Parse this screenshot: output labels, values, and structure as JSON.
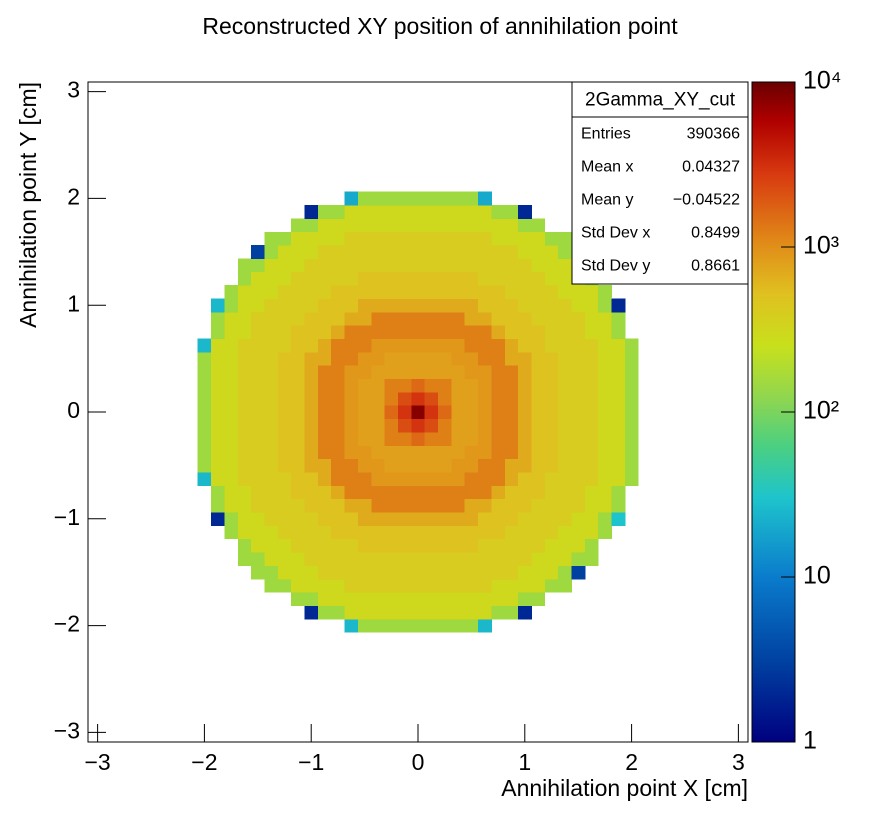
{
  "chart_data": {
    "type": "heatmap",
    "title": "Reconstructed XY position of annihilation point",
    "xlabel": "Annihilation point X [cm]",
    "ylabel": "Annihilation point Y [cm]",
    "xlim": [
      -3.09,
      3.09
    ],
    "ylim": [
      -3.09,
      3.09
    ],
    "xticks": [
      {
        "value": -3,
        "label": "−3"
      },
      {
        "value": -2,
        "label": "−2"
      },
      {
        "value": -1,
        "label": "−1"
      },
      0,
      1,
      2,
      3
    ],
    "yticks": [
      {
        "value": -3,
        "label": "−3"
      },
      {
        "value": -2,
        "label": "−2"
      },
      {
        "value": -1,
        "label": "−1"
      },
      0,
      1,
      2,
      3
    ],
    "zlim": [
      1,
      10000
    ],
    "zlog": true,
    "zticks": [
      1,
      10,
      {
        "value": 100,
        "label": "10²"
      },
      {
        "value": 1000,
        "label": "10³"
      },
      {
        "value": 10000,
        "label": "10⁴"
      }
    ],
    "colorscale": [
      [
        0,
        "#000080"
      ],
      [
        0.12,
        "#0040a0"
      ],
      [
        0.25,
        "#0a7ccc"
      ],
      [
        0.37,
        "#1ec4cc"
      ],
      [
        0.45,
        "#4cd080"
      ],
      [
        0.52,
        "#8ed650"
      ],
      [
        0.6,
        "#c8e01c"
      ],
      [
        0.68,
        "#e0c020"
      ],
      [
        0.76,
        "#e08818"
      ],
      [
        0.86,
        "#d83a10"
      ],
      [
        0.94,
        "#b00000"
      ],
      [
        1,
        "#6a0000"
      ]
    ],
    "xbins": [
      -2.0625,
      -1.9375,
      -1.8125,
      -1.6875,
      -1.5625,
      -1.4375,
      -1.3125,
      -1.1875,
      -1.0625,
      -0.9375,
      -0.8125,
      -0.6875,
      -0.5625,
      -0.4375,
      -0.3125,
      -0.1875,
      -0.0625,
      0.0625,
      0.1875,
      0.3125,
      0.4375,
      0.5625,
      0.6875,
      0.8125,
      0.9375,
      1.0625,
      1.1875,
      1.3125,
      1.4375,
      1.5625,
      1.6875,
      1.8125,
      1.9375,
      2.0625
    ],
    "ybins": [
      -2.0625,
      -1.9375,
      -1.8125,
      -1.6875,
      -1.5625,
      -1.4375,
      -1.3125,
      -1.1875,
      -1.0625,
      -0.9375,
      -0.8125,
      -0.6875,
      -0.5625,
      -0.4375,
      -0.3125,
      -0.1875,
      -0.0625,
      0.0625,
      0.1875,
      0.3125,
      0.4375,
      0.5625,
      0.6875,
      0.8125,
      0.9375,
      1.0625,
      1.1875,
      1.3125,
      1.4375,
      1.5625,
      1.6875,
      1.8125,
      1.9375,
      2.0625
    ],
    "z": [
      [
        null,
        null,
        null,
        null,
        null,
        null,
        null,
        null,
        null,
        null,
        null,
        25,
        150,
        150,
        150,
        150,
        150,
        150,
        150,
        150,
        150,
        25,
        null,
        null,
        null,
        null,
        null,
        null,
        null,
        null,
        null,
        null,
        null
      ],
      [
        null,
        null,
        null,
        null,
        null,
        null,
        null,
        null,
        2,
        150,
        150,
        300,
        300,
        300,
        300,
        300,
        300,
        300,
        300,
        300,
        300,
        300,
        150,
        150,
        2,
        null,
        null,
        null,
        null,
        null,
        null,
        null,
        null
      ],
      [
        null,
        null,
        null,
        null,
        null,
        null,
        null,
        150,
        150,
        300,
        300,
        300,
        300,
        300,
        300,
        300,
        300,
        300,
        300,
        300,
        300,
        300,
        300,
        300,
        150,
        150,
        null,
        null,
        null,
        null,
        null,
        null,
        null
      ],
      [
        null,
        null,
        null,
        null,
        null,
        150,
        150,
        300,
        300,
        300,
        300,
        400,
        400,
        400,
        400,
        400,
        400,
        400,
        400,
        400,
        400,
        400,
        300,
        300,
        300,
        300,
        150,
        150,
        null,
        null,
        null,
        null,
        null
      ],
      [
        null,
        null,
        null,
        null,
        150,
        150,
        300,
        300,
        300,
        400,
        400,
        400,
        400,
        400,
        400,
        400,
        400,
        400,
        400,
        400,
        400,
        400,
        400,
        400,
        300,
        300,
        300,
        150,
        3,
        null,
        null,
        null,
        null
      ],
      [
        null,
        null,
        null,
        150,
        150,
        300,
        300,
        300,
        400,
        400,
        400,
        400,
        400,
        400,
        400,
        400,
        400,
        400,
        400,
        400,
        400,
        400,
        400,
        400,
        400,
        300,
        300,
        300,
        150,
        150,
        null,
        null,
        null
      ],
      [
        null,
        null,
        null,
        150,
        300,
        300,
        300,
        400,
        400,
        400,
        400,
        400,
        500,
        500,
        500,
        500,
        500,
        500,
        500,
        500,
        500,
        400,
        400,
        400,
        400,
        400,
        300,
        300,
        300,
        150,
        null,
        null,
        null
      ],
      [
        null,
        null,
        150,
        300,
        300,
        300,
        400,
        400,
        400,
        400,
        500,
        500,
        500,
        500,
        500,
        500,
        500,
        500,
        500,
        500,
        500,
        500,
        500,
        400,
        400,
        400,
        400,
        300,
        300,
        300,
        150,
        null,
        null
      ],
      [
        null,
        2,
        150,
        300,
        300,
        400,
        400,
        400,
        400,
        500,
        500,
        500,
        700,
        700,
        700,
        700,
        700,
        700,
        700,
        700,
        700,
        500,
        500,
        500,
        400,
        400,
        400,
        400,
        300,
        300,
        150,
        30,
        null
      ],
      [
        null,
        150,
        300,
        300,
        400,
        400,
        400,
        400,
        500,
        500,
        500,
        700,
        700,
        1200,
        1200,
        1200,
        1200,
        1200,
        1200,
        1200,
        700,
        700,
        500,
        500,
        500,
        400,
        400,
        400,
        400,
        300,
        300,
        150,
        null
      ],
      [
        null,
        150,
        300,
        300,
        400,
        400,
        400,
        500,
        500,
        500,
        700,
        1200,
        1200,
        1200,
        1200,
        1200,
        1200,
        1200,
        1200,
        1200,
        1200,
        1200,
        700,
        500,
        500,
        500,
        400,
        400,
        400,
        300,
        300,
        150,
        null
      ],
      [
        25,
        300,
        300,
        400,
        400,
        400,
        400,
        500,
        500,
        700,
        1200,
        1200,
        1200,
        900,
        900,
        900,
        900,
        900,
        900,
        900,
        1200,
        1200,
        1200,
        700,
        500,
        500,
        400,
        400,
        400,
        400,
        300,
        300,
        150
      ],
      [
        150,
        300,
        300,
        400,
        400,
        400,
        500,
        500,
        700,
        700,
        1200,
        1200,
        900,
        900,
        800,
        800,
        800,
        800,
        800,
        900,
        900,
        1200,
        1200,
        700,
        700,
        500,
        500,
        400,
        400,
        400,
        300,
        300,
        150
      ],
      [
        150,
        300,
        300,
        400,
        400,
        400,
        500,
        500,
        700,
        1200,
        1200,
        900,
        900,
        800,
        800,
        800,
        800,
        800,
        800,
        800,
        900,
        900,
        1200,
        1200,
        700,
        500,
        500,
        400,
        400,
        400,
        300,
        300,
        150
      ],
      [
        150,
        300,
        300,
        400,
        400,
        400,
        500,
        500,
        700,
        1200,
        1200,
        900,
        800,
        800,
        1200,
        1200,
        1600,
        1200,
        1200,
        800,
        800,
        900,
        1200,
        1200,
        700,
        500,
        500,
        400,
        400,
        400,
        300,
        300,
        150
      ],
      [
        150,
        300,
        300,
        400,
        400,
        400,
        500,
        500,
        700,
        1200,
        1200,
        900,
        800,
        800,
        1200,
        2200,
        3000,
        2200,
        1200,
        800,
        800,
        900,
        1200,
        1200,
        700,
        500,
        500,
        400,
        400,
        400,
        300,
        300,
        150
      ],
      [
        150,
        300,
        300,
        400,
        400,
        400,
        500,
        500,
        700,
        1200,
        1200,
        900,
        800,
        800,
        1600,
        3000,
        8000,
        3000,
        1600,
        800,
        800,
        900,
        1200,
        1200,
        700,
        500,
        500,
        400,
        400,
        400,
        300,
        300,
        150
      ],
      [
        150,
        300,
        300,
        400,
        400,
        400,
        500,
        500,
        700,
        1200,
        1200,
        900,
        800,
        800,
        1200,
        2200,
        3000,
        2200,
        1200,
        800,
        800,
        900,
        1200,
        1200,
        700,
        500,
        500,
        400,
        400,
        400,
        300,
        300,
        150
      ],
      [
        150,
        300,
        300,
        400,
        400,
        400,
        500,
        500,
        700,
        1200,
        1200,
        900,
        800,
        800,
        1200,
        1200,
        1600,
        1200,
        1200,
        800,
        800,
        900,
        1200,
        1200,
        700,
        500,
        500,
        400,
        400,
        400,
        300,
        300,
        150
      ],
      [
        150,
        300,
        300,
        400,
        400,
        400,
        500,
        500,
        700,
        1200,
        1200,
        900,
        900,
        800,
        800,
        800,
        800,
        800,
        800,
        800,
        900,
        900,
        1200,
        1200,
        700,
        500,
        500,
        400,
        400,
        400,
        300,
        300,
        150
      ],
      [
        150,
        300,
        300,
        400,
        400,
        400,
        500,
        500,
        700,
        700,
        1200,
        1200,
        900,
        900,
        800,
        800,
        800,
        800,
        800,
        900,
        900,
        1200,
        1200,
        700,
        700,
        500,
        500,
        400,
        400,
        400,
        300,
        300,
        150
      ],
      [
        25,
        300,
        300,
        400,
        400,
        400,
        400,
        500,
        500,
        700,
        1200,
        1200,
        1200,
        900,
        900,
        900,
        900,
        900,
        900,
        900,
        1200,
        1200,
        1200,
        700,
        500,
        500,
        400,
        400,
        400,
        400,
        300,
        300,
        150
      ],
      [
        null,
        150,
        300,
        300,
        400,
        400,
        400,
        500,
        500,
        500,
        700,
        1200,
        1200,
        1200,
        1200,
        1200,
        1200,
        1200,
        1200,
        1200,
        1200,
        1200,
        700,
        500,
        500,
        500,
        400,
        400,
        400,
        300,
        300,
        150,
        null
      ],
      [
        null,
        150,
        300,
        300,
        400,
        400,
        400,
        400,
        500,
        500,
        500,
        700,
        700,
        1200,
        1200,
        1200,
        1200,
        1200,
        1200,
        1200,
        700,
        700,
        500,
        500,
        500,
        400,
        400,
        400,
        400,
        300,
        300,
        150,
        null
      ],
      [
        null,
        25,
        150,
        300,
        300,
        400,
        400,
        400,
        400,
        500,
        500,
        500,
        700,
        700,
        700,
        700,
        700,
        700,
        700,
        700,
        700,
        500,
        500,
        500,
        400,
        400,
        400,
        400,
        300,
        300,
        150,
        2,
        null
      ],
      [
        null,
        null,
        150,
        300,
        300,
        300,
        400,
        400,
        400,
        400,
        500,
        500,
        500,
        500,
        500,
        500,
        500,
        500,
        500,
        500,
        500,
        500,
        500,
        400,
        400,
        400,
        400,
        300,
        300,
        300,
        150,
        null,
        null
      ],
      [
        null,
        null,
        null,
        150,
        300,
        300,
        300,
        400,
        400,
        400,
        400,
        400,
        500,
        500,
        500,
        500,
        500,
        500,
        500,
        500,
        500,
        400,
        400,
        400,
        400,
        400,
        300,
        300,
        300,
        150,
        null,
        null,
        null
      ],
      [
        null,
        null,
        null,
        150,
        150,
        300,
        300,
        300,
        400,
        400,
        400,
        400,
        400,
        400,
        400,
        400,
        400,
        400,
        400,
        400,
        400,
        400,
        400,
        400,
        400,
        300,
        300,
        300,
        150,
        150,
        null,
        null,
        null
      ],
      [
        null,
        null,
        null,
        null,
        3,
        150,
        300,
        300,
        300,
        400,
        400,
        400,
        400,
        400,
        400,
        400,
        400,
        400,
        400,
        400,
        400,
        400,
        400,
        400,
        300,
        300,
        300,
        150,
        150,
        null,
        null,
        null,
        null
      ],
      [
        null,
        null,
        null,
        null,
        null,
        150,
        150,
        300,
        300,
        300,
        300,
        400,
        400,
        400,
        400,
        400,
        400,
        400,
        400,
        400,
        400,
        400,
        300,
        300,
        300,
        300,
        150,
        150,
        null,
        null,
        null,
        null,
        null
      ],
      [
        null,
        null,
        null,
        null,
        null,
        null,
        null,
        150,
        150,
        300,
        300,
        300,
        300,
        300,
        300,
        300,
        300,
        300,
        300,
        300,
        300,
        300,
        300,
        300,
        150,
        150,
        null,
        null,
        null,
        null,
        null,
        null,
        null
      ],
      [
        null,
        null,
        null,
        null,
        null,
        null,
        null,
        null,
        2,
        150,
        150,
        300,
        300,
        300,
        300,
        300,
        300,
        300,
        300,
        300,
        300,
        300,
        150,
        150,
        2,
        null,
        null,
        null,
        null,
        null,
        null,
        null,
        null
      ],
      [
        null,
        null,
        null,
        null,
        null,
        null,
        null,
        null,
        null,
        null,
        null,
        20,
        150,
        150,
        150,
        150,
        150,
        150,
        150,
        150,
        150,
        20,
        null,
        null,
        null,
        null,
        null,
        null,
        null,
        null,
        null,
        null,
        null
      ]
    ],
    "stats": {
      "title": "2Gamma_XY_cut",
      "rows": [
        {
          "label": "Entries",
          "value": 390366
        },
        {
          "label": "Mean x",
          "value": 0.04327
        },
        {
          "label": "Mean y",
          "value": {
            "value": -0.04522,
            "label": "−0.04522"
          }
        },
        {
          "label": "Std Dev x",
          "value": 0.8499
        },
        {
          "label": "Std Dev y",
          "value": 0.8661
        }
      ]
    }
  }
}
